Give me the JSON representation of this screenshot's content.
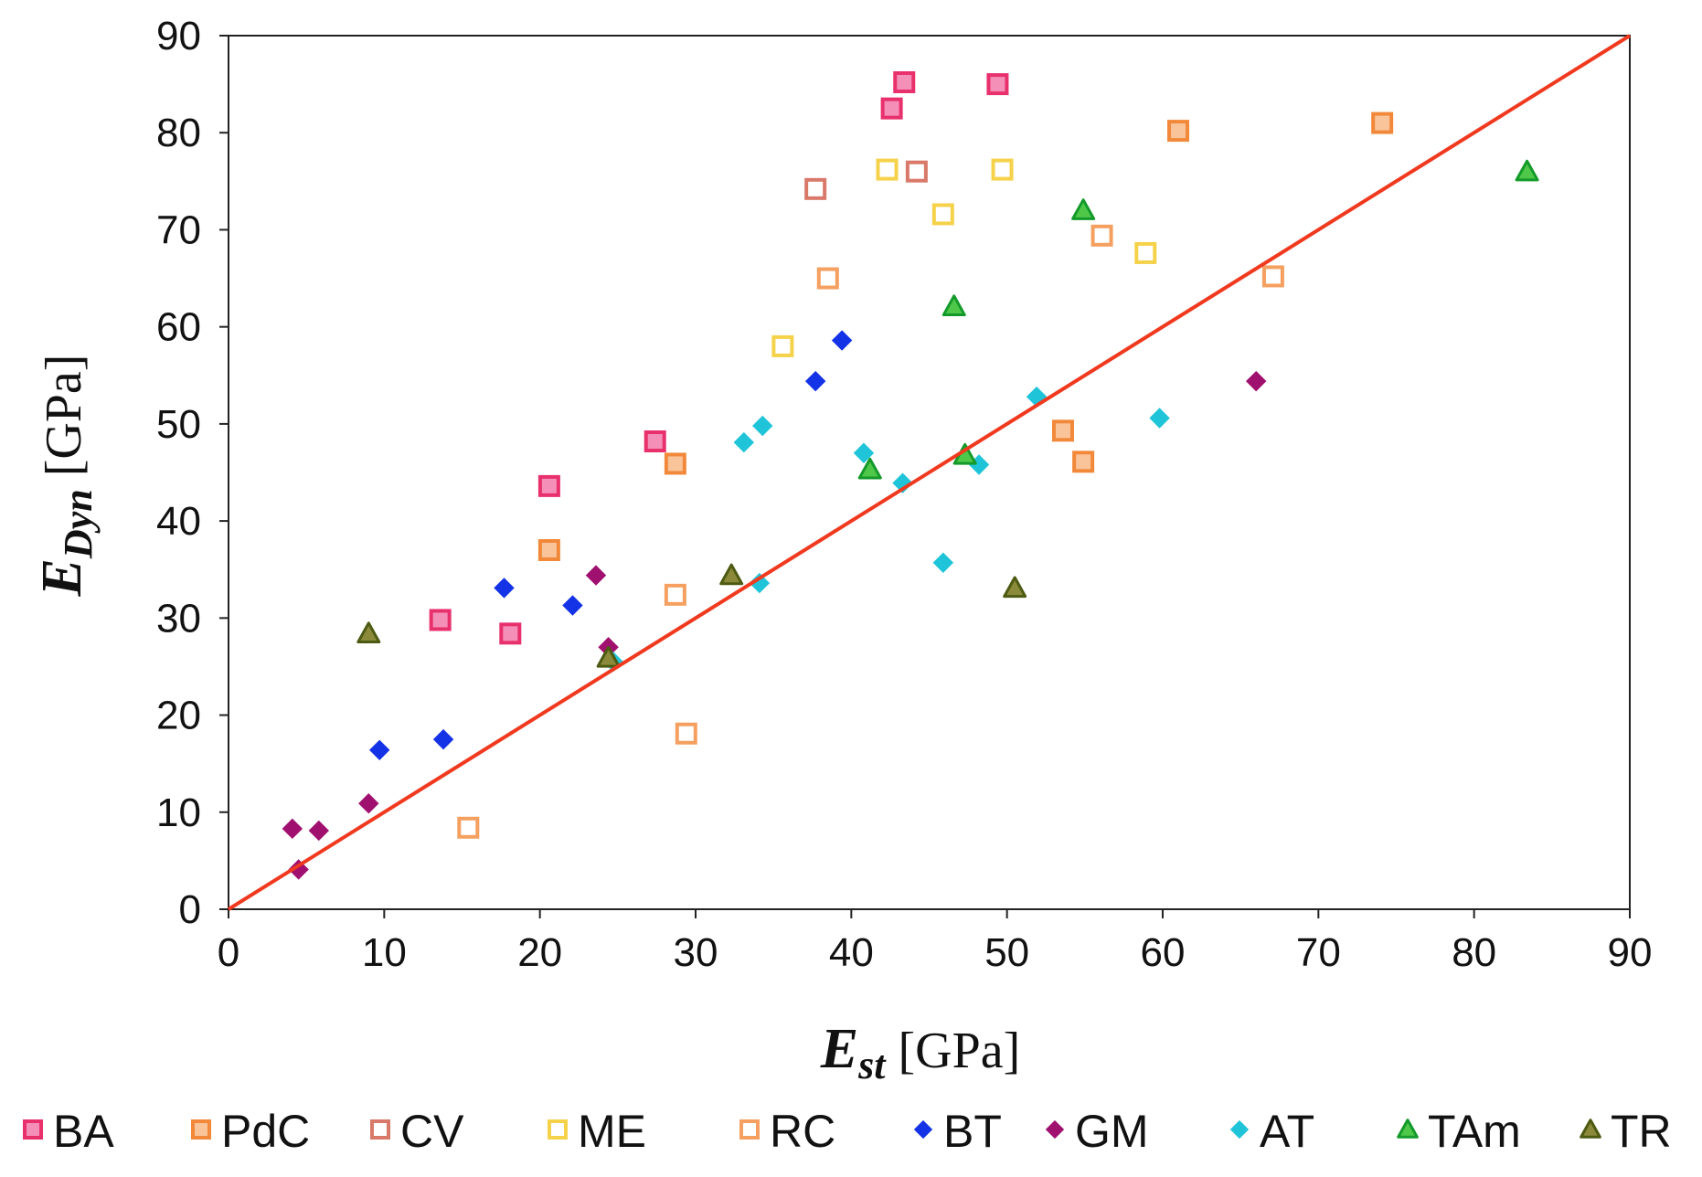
{
  "chart_data": {
    "type": "scatter",
    "title": "",
    "xlabel": {
      "main": "E",
      "sub": "st",
      "unit": " [GPa]"
    },
    "ylabel": {
      "main": "E",
      "sub": "Dyn",
      "unit": "  [GPa]"
    },
    "xlim": [
      0,
      90
    ],
    "ylim": [
      0,
      90
    ],
    "xticks": [
      "0",
      "10",
      "20",
      "30",
      "40",
      "50",
      "60",
      "70",
      "80",
      "90"
    ],
    "yticks": [
      "0",
      "10",
      "20",
      "30",
      "40",
      "50",
      "60",
      "70",
      "80",
      "90"
    ],
    "grid": false,
    "legend_position": "bottom",
    "reference_line": {
      "name": "y = x",
      "color": "#f0391e",
      "points": [
        [
          0,
          0
        ],
        [
          90,
          90
        ]
      ]
    },
    "series": [
      {
        "name": "BA",
        "marker": "square-filled",
        "color": "#e8316c",
        "fill": "#f48fb8",
        "points": [
          [
            13.6,
            29.8
          ],
          [
            18.1,
            28.4
          ],
          [
            20.6,
            43.6
          ],
          [
            27.4,
            48.2
          ],
          [
            42.6,
            82.5
          ],
          [
            43.4,
            85.2
          ],
          [
            49.4,
            85.0
          ]
        ]
      },
      {
        "name": "PdC",
        "marker": "square-filled",
        "color": "#f2893a",
        "fill": "#f9c49a",
        "points": [
          [
            20.6,
            37.0
          ],
          [
            28.7,
            45.9
          ],
          [
            53.6,
            49.3
          ],
          [
            54.9,
            46.1
          ],
          [
            61.0,
            80.2
          ],
          [
            74.1,
            81.0
          ]
        ]
      },
      {
        "name": "CV",
        "marker": "square-open",
        "color": "#d9796a",
        "fill": "#ffffff",
        "points": [
          [
            37.7,
            74.2
          ],
          [
            44.2,
            76.0
          ]
        ]
      },
      {
        "name": "ME",
        "marker": "square-open",
        "color": "#f5d24a",
        "fill": "#ffffff",
        "points": [
          [
            35.6,
            58.0
          ],
          [
            42.3,
            76.2
          ],
          [
            45.9,
            71.6
          ],
          [
            49.7,
            76.2
          ],
          [
            58.9,
            67.6
          ]
        ]
      },
      {
        "name": "RC",
        "marker": "square-open",
        "color": "#f5a060",
        "fill": "#ffffff",
        "points": [
          [
            15.4,
            8.4
          ],
          [
            28.7,
            32.4
          ],
          [
            29.4,
            18.1
          ],
          [
            38.5,
            65.0
          ],
          [
            56.1,
            69.4
          ],
          [
            67.1,
            65.2
          ]
        ]
      },
      {
        "name": "BT",
        "marker": "diamond",
        "color": "#1432e6",
        "fill": "#1432e6",
        "points": [
          [
            9.7,
            16.4
          ],
          [
            13.8,
            17.5
          ],
          [
            17.7,
            33.1
          ],
          [
            22.1,
            31.3
          ],
          [
            37.7,
            54.4
          ],
          [
            39.4,
            58.6
          ]
        ]
      },
      {
        "name": "GM",
        "marker": "diamond",
        "color": "#a0106e",
        "fill": "#a0106e",
        "points": [
          [
            4.1,
            8.3
          ],
          [
            4.5,
            4.1
          ],
          [
            5.8,
            8.1
          ],
          [
            9.0,
            10.9
          ],
          [
            23.6,
            34.4
          ],
          [
            24.4,
            27.0
          ],
          [
            66.0,
            54.4
          ]
        ]
      },
      {
        "name": "AT",
        "marker": "diamond",
        "color": "#1fc4d9",
        "fill": "#1fc4d9",
        "points": [
          [
            24.7,
            25.5
          ],
          [
            33.1,
            48.1
          ],
          [
            34.1,
            33.6
          ],
          [
            34.3,
            49.8
          ],
          [
            40.8,
            47.0
          ],
          [
            43.3,
            43.9
          ],
          [
            45.9,
            35.7
          ],
          [
            48.2,
            45.8
          ],
          [
            51.9,
            52.8
          ],
          [
            59.8,
            50.6
          ]
        ]
      },
      {
        "name": "TAm",
        "marker": "triangle",
        "color": "#139a2a",
        "fill": "#4fc84a",
        "points": [
          [
            41.2,
            45.3
          ],
          [
            46.6,
            62.1
          ],
          [
            47.3,
            46.8
          ],
          [
            54.9,
            72.0
          ],
          [
            83.4,
            76.0
          ]
        ]
      },
      {
        "name": "TR",
        "marker": "triangle",
        "color": "#4d5a12",
        "fill": "#8a8a3a",
        "points": [
          [
            9.0,
            28.4
          ],
          [
            24.4,
            25.9
          ],
          [
            32.3,
            34.4
          ],
          [
            50.5,
            33.1
          ]
        ]
      }
    ]
  }
}
